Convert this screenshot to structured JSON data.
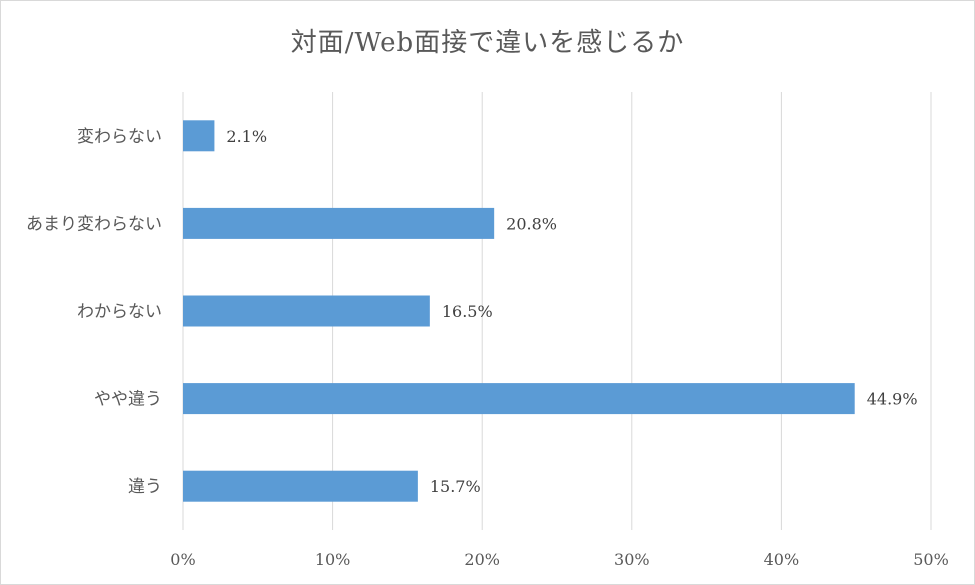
{
  "chart_data": {
    "type": "bar",
    "orientation": "horizontal",
    "title": "対面/Web面接で違いを感じるか",
    "categories": [
      "変わらない",
      "あまり変わらない",
      "わからない",
      "やや違う",
      "違う"
    ],
    "values": [
      2.1,
      20.8,
      16.5,
      44.9,
      15.7
    ],
    "data_labels": [
      "2.1%",
      "20.8%",
      "16.5%",
      "44.9%",
      "15.7%"
    ],
    "xlim": [
      0,
      50
    ],
    "x_ticks": [
      0,
      10,
      20,
      30,
      40,
      50
    ],
    "x_tick_labels": [
      "0%",
      "10%",
      "20%",
      "30%",
      "40%",
      "50%"
    ],
    "grid": "vertical",
    "legend": "none",
    "bar_color": "#5b9bd5",
    "grid_color": "#d9d9d9"
  }
}
